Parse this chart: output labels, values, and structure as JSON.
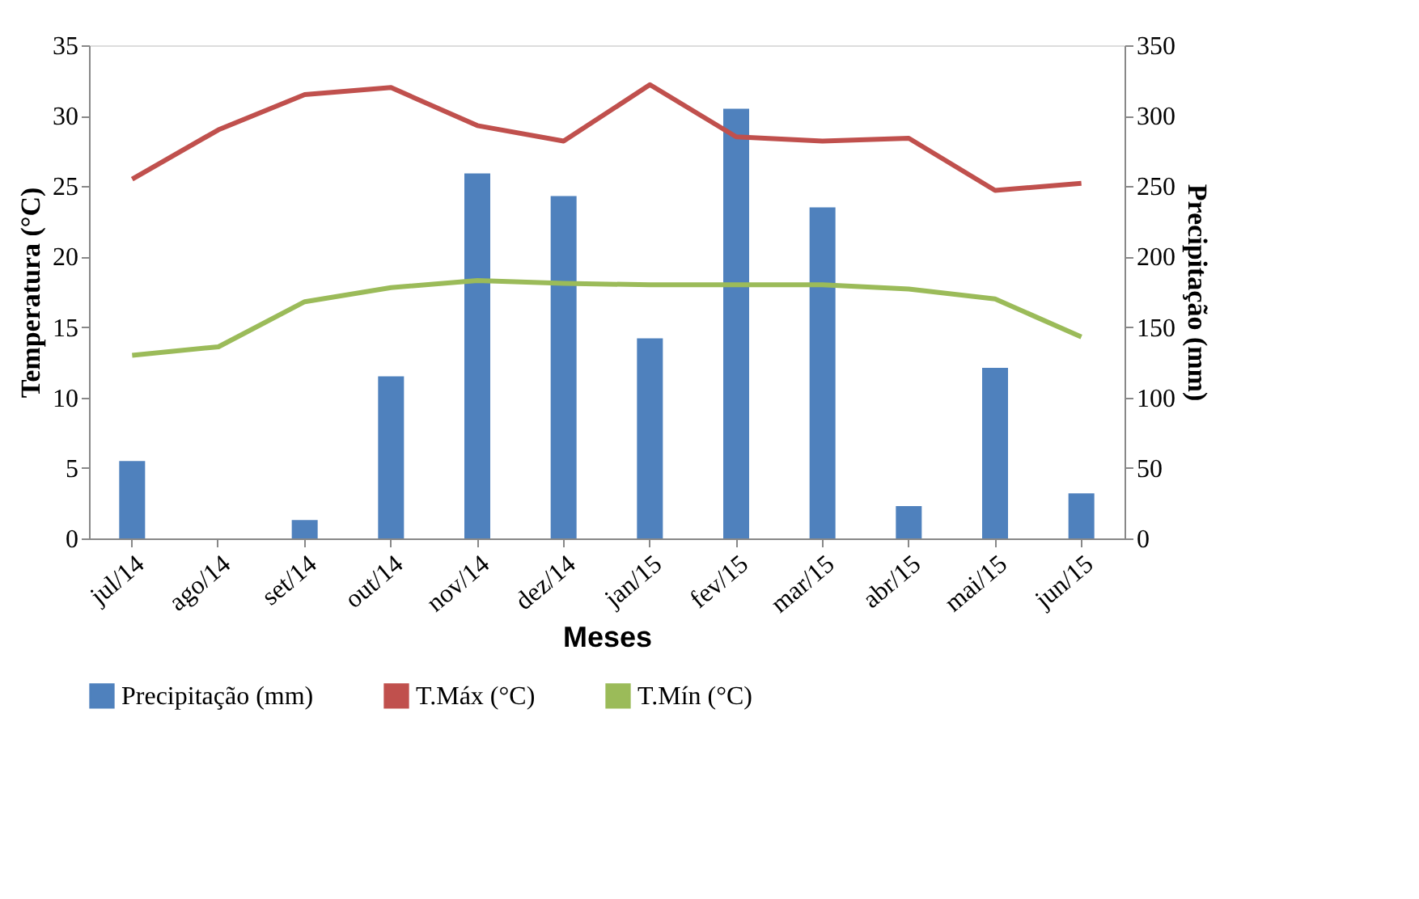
{
  "chart_data": {
    "type": "bar",
    "xlabel": "Meses",
    "ylabel": "Temperatura  (°C)",
    "y2label": "Precipitação (mm)",
    "categories": [
      "jul/14",
      "ago/14",
      "set/14",
      "out/14",
      "nov/14",
      "dez/14",
      "jan/15",
      "fev/15",
      "mar/15",
      "abr/15",
      "mai/15",
      "jun/15"
    ],
    "series": [
      {
        "name": "Precipitação (mm)",
        "axis": "y2",
        "color": "#4f81bd",
        "values": [
          55,
          0,
          13,
          115,
          259,
          243,
          142,
          305,
          235,
          23,
          121,
          32
        ]
      },
      {
        "name": "T.Máx (°C)",
        "type": "line",
        "color": "#c0504d",
        "values": [
          25.5,
          29,
          31.5,
          32,
          29.3,
          28.2,
          32.2,
          28.5,
          28.2,
          28.4,
          24.7,
          25.2
        ]
      },
      {
        "name": "T.Mín (°C)",
        "type": "line",
        "color": "#9bbb59",
        "values": [
          13,
          13.6,
          16.8,
          17.8,
          18.3,
          18.1,
          18.0,
          18.0,
          18.0,
          17.7,
          17.0,
          14.3
        ]
      }
    ],
    "ylim": [
      0,
      35
    ],
    "yticks": [
      0,
      5,
      10,
      15,
      20,
      25,
      30,
      35
    ],
    "y2lim": [
      0,
      350
    ],
    "y2ticks": [
      0,
      50,
      100,
      150,
      200,
      250,
      300,
      350
    ],
    "grid": false,
    "legend": "bottom",
    "marker": "none",
    "line_style": "solid"
  }
}
